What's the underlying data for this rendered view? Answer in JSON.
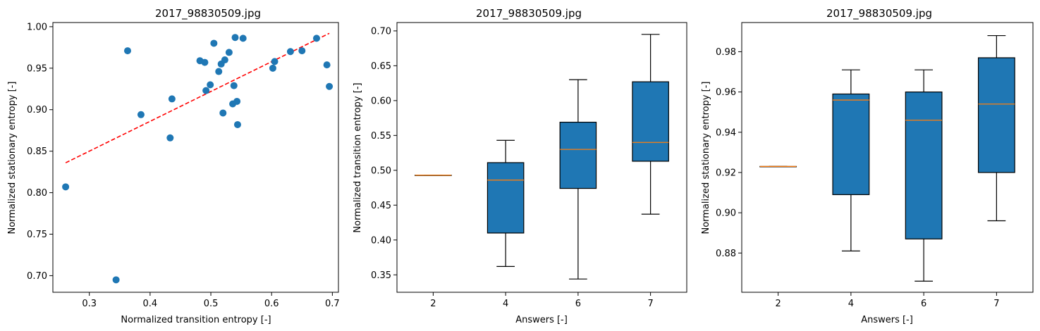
{
  "colors": {
    "point": "#1f77b4",
    "fit_line": "#ff0000",
    "box_fill": "#1f77b4",
    "median": "#ff7f0e",
    "frame": "#000000"
  },
  "chart_data": [
    {
      "type": "scatter",
      "title": "2017_98830509.jpg",
      "xlabel": "Normalized transition entropy [-]",
      "ylabel": "Normalized stationary entropy [-]",
      "xlim": [
        0.24,
        0.71
      ],
      "ylim": [
        0.68,
        1.005
      ],
      "xticks": [
        0.3,
        0.4,
        0.5,
        0.6,
        0.7
      ],
      "yticks": [
        0.7,
        0.75,
        0.8,
        0.85,
        0.9,
        0.95,
        1.0
      ],
      "grid": false,
      "points": [
        {
          "x": 0.261,
          "y": 0.807
        },
        {
          "x": 0.344,
          "y": 0.695
        },
        {
          "x": 0.363,
          "y": 0.971
        },
        {
          "x": 0.385,
          "y": 0.894
        },
        {
          "x": 0.433,
          "y": 0.866
        },
        {
          "x": 0.436,
          "y": 0.913
        },
        {
          "x": 0.482,
          "y": 0.959
        },
        {
          "x": 0.49,
          "y": 0.957
        },
        {
          "x": 0.492,
          "y": 0.923
        },
        {
          "x": 0.499,
          "y": 0.93
        },
        {
          "x": 0.505,
          "y": 0.98
        },
        {
          "x": 0.513,
          "y": 0.946
        },
        {
          "x": 0.517,
          "y": 0.955
        },
        {
          "x": 0.52,
          "y": 0.896
        },
        {
          "x": 0.523,
          "y": 0.96
        },
        {
          "x": 0.53,
          "y": 0.969
        },
        {
          "x": 0.536,
          "y": 0.907
        },
        {
          "x": 0.538,
          "y": 0.929
        },
        {
          "x": 0.54,
          "y": 0.987
        },
        {
          "x": 0.543,
          "y": 0.91
        },
        {
          "x": 0.544,
          "y": 0.882
        },
        {
          "x": 0.553,
          "y": 0.986
        },
        {
          "x": 0.602,
          "y": 0.95
        },
        {
          "x": 0.605,
          "y": 0.958
        },
        {
          "x": 0.631,
          "y": 0.97
        },
        {
          "x": 0.65,
          "y": 0.971
        },
        {
          "x": 0.674,
          "y": 0.986
        },
        {
          "x": 0.691,
          "y": 0.954
        },
        {
          "x": 0.695,
          "y": 0.928
        }
      ],
      "fit_line": {
        "x": [
          0.261,
          0.695
        ],
        "y": [
          0.836,
          0.992
        ]
      }
    },
    {
      "type": "box",
      "title": "2017_98830509.jpg",
      "xlabel": "Answers [-]",
      "ylabel": "Normalized transition entropy [-]",
      "categories": [
        "2",
        "4",
        "6",
        "7"
      ],
      "ylim": [
        0.325,
        0.712
      ],
      "yticks": [
        0.35,
        0.4,
        0.45,
        0.5,
        0.55,
        0.6,
        0.65,
        0.7
      ],
      "grid": false,
      "boxes": [
        {
          "min": 0.493,
          "q1": 0.493,
          "median": 0.493,
          "q3": 0.493,
          "max": 0.493
        },
        {
          "min": 0.362,
          "q1": 0.41,
          "median": 0.486,
          "q3": 0.511,
          "max": 0.543
        },
        {
          "min": 0.344,
          "q1": 0.474,
          "median": 0.53,
          "q3": 0.569,
          "max": 0.63
        },
        {
          "min": 0.437,
          "q1": 0.513,
          "median": 0.54,
          "q3": 0.627,
          "max": 0.695
        }
      ]
    },
    {
      "type": "box",
      "title": "2017_98830509.jpg",
      "xlabel": "Answers [-]",
      "ylabel": "Normalized stationary entropy [-]",
      "categories": [
        "2",
        "4",
        "6",
        "7"
      ],
      "ylim": [
        0.8605,
        0.9945
      ],
      "yticks": [
        0.88,
        0.9,
        0.92,
        0.94,
        0.96,
        0.98
      ],
      "grid": false,
      "boxes": [
        {
          "min": 0.923,
          "q1": 0.923,
          "median": 0.923,
          "q3": 0.923,
          "max": 0.923
        },
        {
          "min": 0.881,
          "q1": 0.909,
          "median": 0.956,
          "q3": 0.959,
          "max": 0.971
        },
        {
          "min": 0.866,
          "q1": 0.887,
          "median": 0.946,
          "q3": 0.96,
          "max": 0.971
        },
        {
          "min": 0.896,
          "q1": 0.92,
          "median": 0.954,
          "q3": 0.977,
          "max": 0.988
        }
      ]
    }
  ]
}
